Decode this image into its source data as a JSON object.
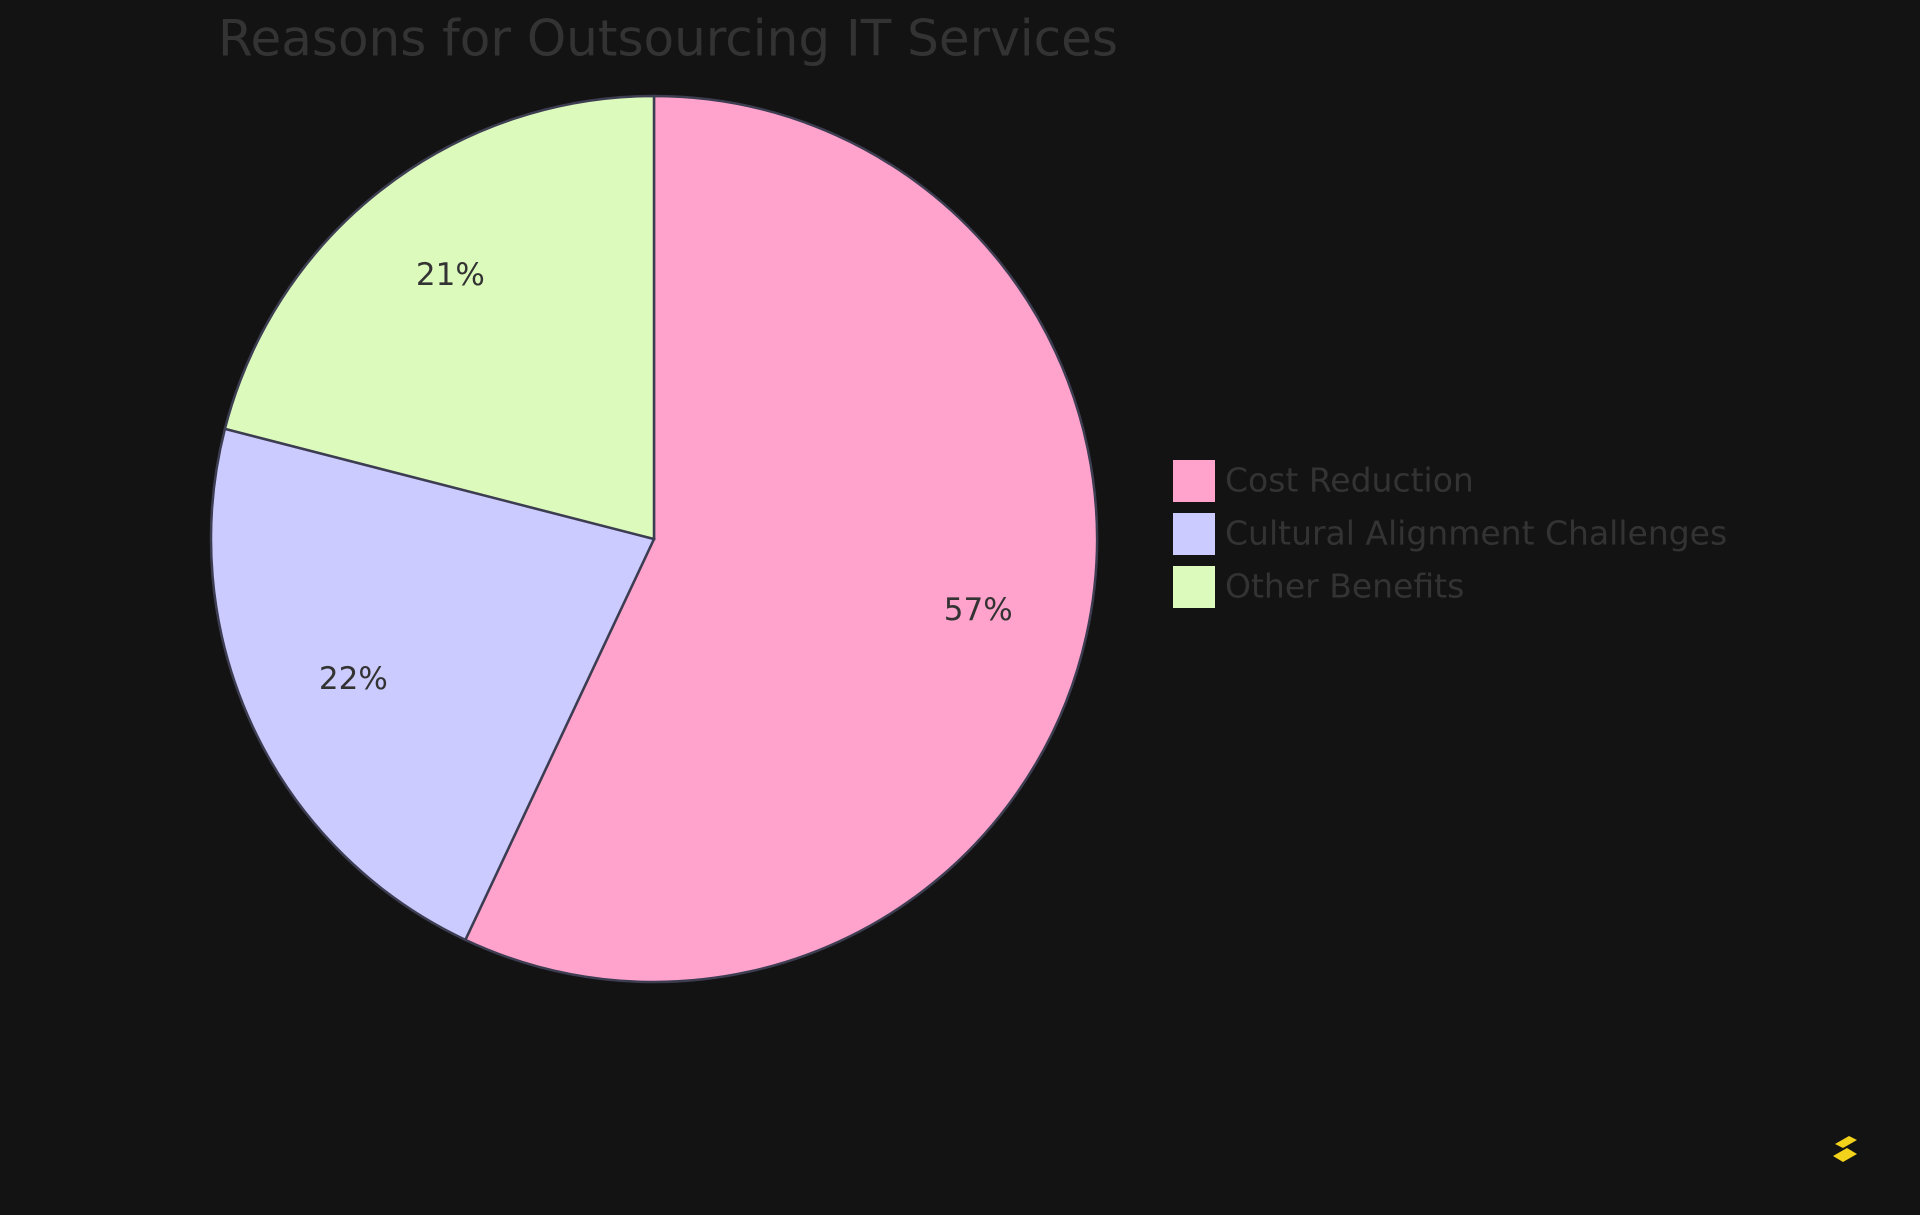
{
  "chart_data": {
    "type": "pie",
    "title": "Reasons for Outsourcing IT Services",
    "categories": [
      "Cost Reduction",
      "Cultural Alignment Challenges",
      "Other Benefits"
    ],
    "values": [
      57,
      22,
      21
    ],
    "value_labels": [
      "57%",
      "22%",
      "21%"
    ],
    "colors": [
      "#ffa3cc",
      "#cbcbff",
      "#ddfabd"
    ],
    "legend": "right"
  }
}
